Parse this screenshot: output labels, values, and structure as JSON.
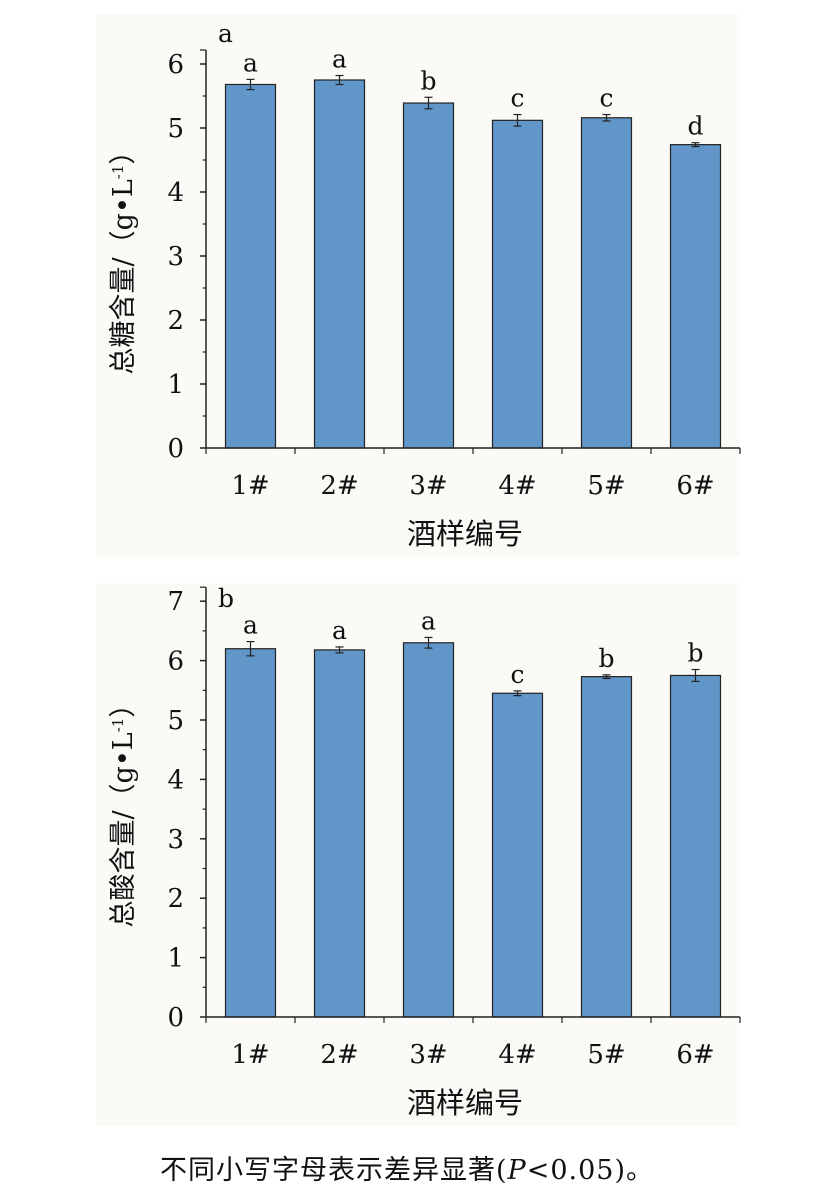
{
  "chart_data": [
    {
      "type": "bar",
      "panel_label": "a",
      "categories": [
        "1#",
        "2#",
        "3#",
        "4#",
        "5#",
        "6#"
      ],
      "values": [
        5.68,
        5.75,
        5.39,
        5.12,
        5.16,
        4.74
      ],
      "errors": [
        0.08,
        0.07,
        0.09,
        0.09,
        0.05,
        0.03
      ],
      "sig_letters": [
        "a",
        "a",
        "b",
        "c",
        "c",
        "d"
      ],
      "ylabel": "总糖含量/（g•L-1）",
      "xlabel": "酒样编号",
      "ylim": [
        0,
        6
      ],
      "yticks": [
        0,
        1,
        2,
        3,
        4,
        5,
        6
      ],
      "bar_color": "#6196c8",
      "grid": false
    },
    {
      "type": "bar",
      "panel_label": "b",
      "categories": [
        "1#",
        "2#",
        "3#",
        "4#",
        "5#",
        "6#"
      ],
      "values": [
        6.2,
        6.18,
        6.3,
        5.45,
        5.73,
        5.75
      ],
      "errors": [
        0.12,
        0.05,
        0.09,
        0.04,
        0.03,
        0.1
      ],
      "sig_letters": [
        "a",
        "a",
        "a",
        "c",
        "b",
        "b"
      ],
      "ylabel": "总酸含量/（g•L-1）",
      "xlabel": "酒样编号",
      "ylim": [
        0,
        7
      ],
      "yticks": [
        0,
        1,
        2,
        3,
        4,
        5,
        6,
        7
      ],
      "bar_color": "#6196c8",
      "grid": false
    }
  ],
  "caption": {
    "before": "不同小写字母表示差异显著(",
    "italic": "P",
    "after": "<0.05)。"
  }
}
